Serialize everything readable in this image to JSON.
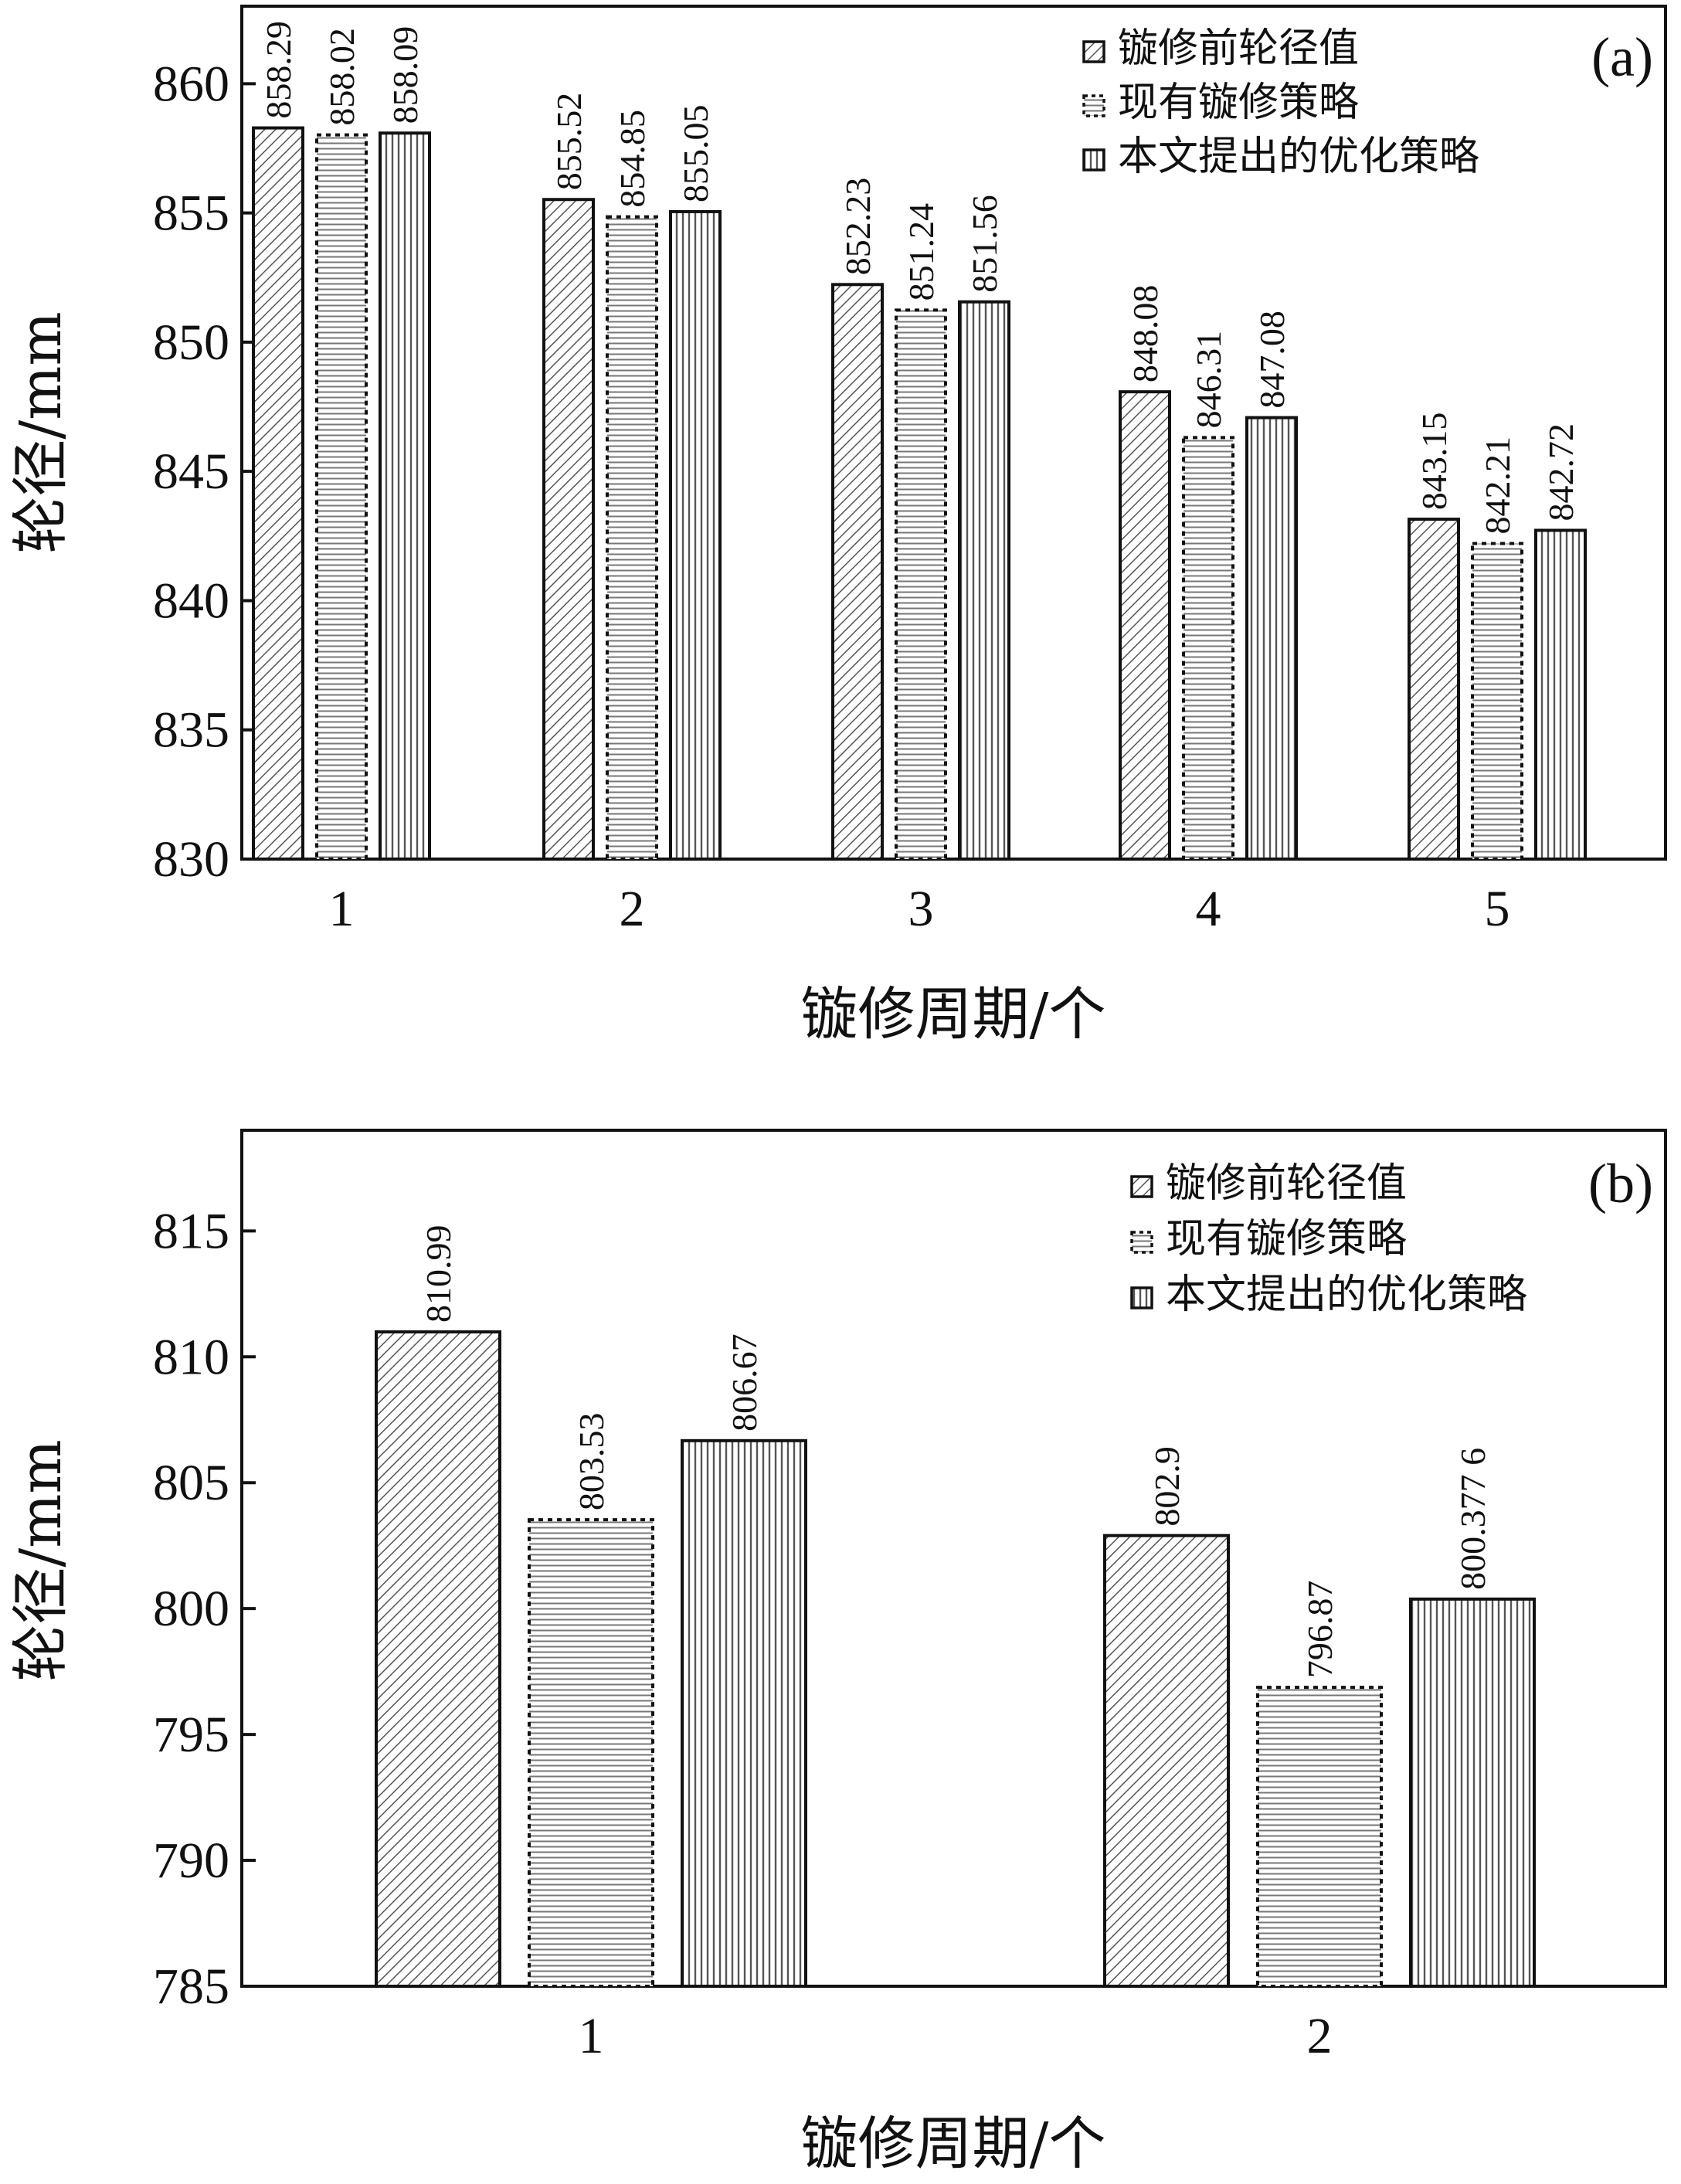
{
  "chart_data": [
    {
      "type": "bar",
      "panel_label": "(a)",
      "xlabel": "镟修周期/个",
      "ylabel": "轮径/mm",
      "ylim": [
        830,
        863
      ],
      "yticks": [
        830,
        835,
        840,
        845,
        850,
        855,
        860
      ],
      "categories": [
        "1",
        "2",
        "3",
        "4",
        "5"
      ],
      "legend_position": "top-right",
      "series": [
        {
          "name": "镟修前轮径值",
          "pattern": "diagonal",
          "values": [
            858.29,
            855.52,
            852.23,
            848.08,
            843.15
          ],
          "labels": [
            "858.29",
            "855.52",
            "852.23",
            "848.08",
            "843.15"
          ]
        },
        {
          "name": "现有镟修策略",
          "pattern": "horizontal-dotted",
          "values": [
            858.02,
            854.85,
            851.24,
            846.31,
            842.21
          ],
          "labels": [
            "858.02",
            "854.85",
            "851.24",
            "846.31",
            "842.21"
          ]
        },
        {
          "name": "本文提出的优化策略",
          "pattern": "vertical",
          "values": [
            858.09,
            855.05,
            851.56,
            847.08,
            842.72
          ],
          "labels": [
            "858.09",
            "855.05",
            "851.56",
            "847.08",
            "842.72"
          ]
        }
      ]
    },
    {
      "type": "bar",
      "panel_label": "(b)",
      "xlabel": "镟修周期/个",
      "ylabel": "轮径/mm",
      "ylim": [
        785,
        819
      ],
      "yticks": [
        785,
        790,
        795,
        800,
        805,
        810,
        815
      ],
      "categories": [
        "1",
        "2"
      ],
      "legend_position": "top-right",
      "series": [
        {
          "name": "镟修前轮径值",
          "pattern": "diagonal",
          "values": [
            810.99,
            802.9
          ],
          "labels": [
            "810.99",
            "802.9"
          ]
        },
        {
          "name": "现有镟修策略",
          "pattern": "horizontal-dotted",
          "values": [
            803.53,
            796.87
          ],
          "labels": [
            "803.53",
            "796.87"
          ]
        },
        {
          "name": "本文提出的优化策略",
          "pattern": "vertical",
          "values": [
            806.67,
            800.3776
          ],
          "labels": [
            "806.67",
            "800.377 6"
          ]
        }
      ]
    }
  ]
}
